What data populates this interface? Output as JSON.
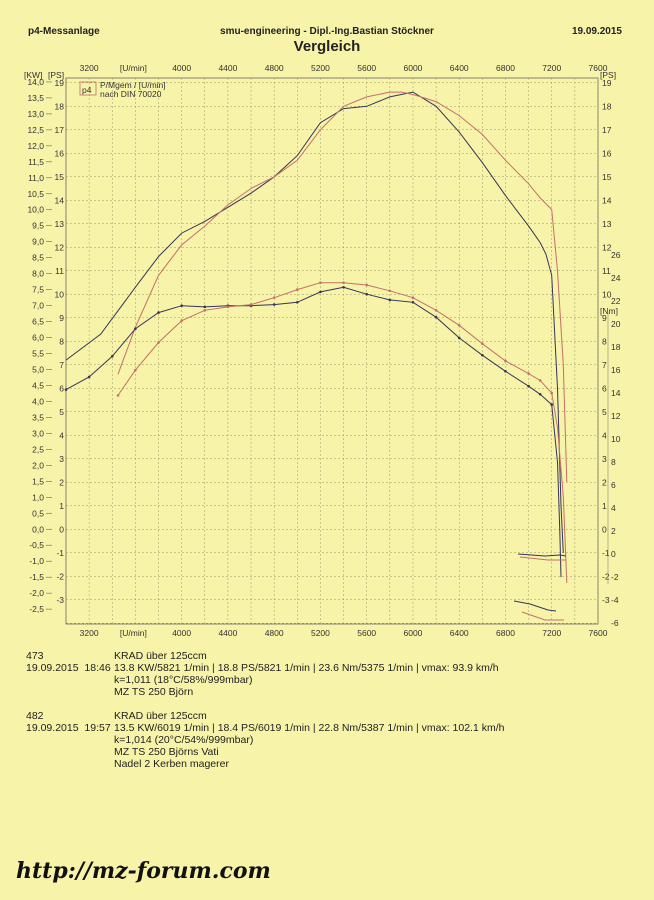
{
  "header": {
    "left": "p4-Messanlage",
    "center": "smu-engineering - Dipl.-Ing.Bastian Stöckner",
    "right": "19.09.2015",
    "title": "Vergleich"
  },
  "chart_data": {
    "type": "line",
    "x": {
      "label": "[U/min]",
      "min": 3000,
      "max": 7600,
      "ticks": [
        3200,
        4000,
        4400,
        4800,
        5200,
        5600,
        6000,
        6400,
        6800,
        7200,
        7600
      ]
    },
    "y_kw": {
      "label": "[KW]",
      "min": -2.5,
      "max": 14.0,
      "ticks": [
        "14,0",
        "13,5",
        "13,0",
        "12,5",
        "12,0",
        "11,5",
        "11,0",
        "10,5",
        "10,0",
        "9,5",
        "9,0",
        "8,5",
        "8,0",
        "7,5",
        "7,0",
        "6,5",
        "6,0",
        "5,5",
        "5,0",
        "4,5",
        "4,0",
        "3,5",
        "3,0",
        "2,5",
        "2,0",
        "1,5",
        "1,0",
        "0,5",
        "0,0",
        "-0,5",
        "-1,0",
        "-1,5",
        "-2,0",
        "-2,5"
      ]
    },
    "y_ps": {
      "label": "[PS]",
      "min": -4,
      "max": 19
    },
    "y_nm": {
      "label": "[Nm]",
      "min": -6,
      "max": 26
    },
    "legend": {
      "logo": "p4",
      "line1": "P/Mgem / [U/min]",
      "line2": "nach DIN 70020"
    },
    "series": [
      {
        "axis": "ps",
        "color": "#35355a",
        "points": [
          [
            3000,
            7.2
          ],
          [
            3300,
            8.3
          ],
          [
            3600,
            10.3
          ],
          [
            3800,
            11.6
          ],
          [
            4000,
            12.6
          ],
          [
            4200,
            13.1
          ],
          [
            4400,
            13.7
          ],
          [
            4600,
            14.3
          ],
          [
            4800,
            15.0
          ],
          [
            5000,
            15.9
          ],
          [
            5200,
            17.3
          ],
          [
            5400,
            17.9
          ],
          [
            5600,
            18.0
          ],
          [
            5800,
            18.4
          ],
          [
            6000,
            18.6
          ],
          [
            6200,
            18.0
          ],
          [
            6400,
            16.9
          ],
          [
            6600,
            15.6
          ],
          [
            6800,
            14.2
          ],
          [
            7000,
            12.9
          ],
          [
            7100,
            12.2
          ],
          [
            7150,
            11.7
          ],
          [
            7200,
            10.8
          ],
          [
            7250,
            6.0
          ],
          [
            7280,
            1.0
          ],
          [
            7300,
            -1.0
          ]
        ]
      },
      {
        "axis": "ps",
        "color": "#c4706a",
        "points": [
          [
            3450,
            6.6
          ],
          [
            3600,
            8.6
          ],
          [
            3800,
            10.8
          ],
          [
            4000,
            12.1
          ],
          [
            4200,
            12.9
          ],
          [
            4400,
            13.8
          ],
          [
            4600,
            14.5
          ],
          [
            4800,
            15.0
          ],
          [
            5000,
            15.7
          ],
          [
            5200,
            17.0
          ],
          [
            5400,
            18.0
          ],
          [
            5600,
            18.4
          ],
          [
            5800,
            18.6
          ],
          [
            5900,
            18.6
          ],
          [
            6000,
            18.5
          ],
          [
            6200,
            18.2
          ],
          [
            6400,
            17.6
          ],
          [
            6600,
            16.8
          ],
          [
            6800,
            15.7
          ],
          [
            7000,
            14.7
          ],
          [
            7100,
            14.1
          ],
          [
            7200,
            13.6
          ],
          [
            7250,
            11.0
          ],
          [
            7300,
            7.0
          ],
          [
            7330,
            2.0
          ]
        ]
      },
      {
        "axis": "nm",
        "color": "#35355a",
        "points": [
          [
            3000,
            14.3
          ],
          [
            3200,
            15.4
          ],
          [
            3400,
            17.2
          ],
          [
            3600,
            19.6
          ],
          [
            3800,
            21.0
          ],
          [
            4000,
            21.6
          ],
          [
            4200,
            21.5
          ],
          [
            4400,
            21.6
          ],
          [
            4600,
            21.6
          ],
          [
            4800,
            21.7
          ],
          [
            5000,
            21.9
          ],
          [
            5200,
            22.8
          ],
          [
            5400,
            23.2
          ],
          [
            5600,
            22.6
          ],
          [
            5800,
            22.1
          ],
          [
            6000,
            21.9
          ],
          [
            6200,
            20.6
          ],
          [
            6400,
            18.8
          ],
          [
            6600,
            17.3
          ],
          [
            6800,
            15.9
          ],
          [
            7000,
            14.6
          ],
          [
            7100,
            13.9
          ],
          [
            7200,
            13.0
          ],
          [
            7250,
            8.0
          ],
          [
            7270,
            2.0
          ],
          [
            7280,
            -2.0
          ]
        ]
      },
      {
        "axis": "nm",
        "color": "#c4706a",
        "points": [
          [
            3450,
            13.8
          ],
          [
            3600,
            16.0
          ],
          [
            3800,
            18.4
          ],
          [
            4000,
            20.3
          ],
          [
            4200,
            21.2
          ],
          [
            4400,
            21.5
          ],
          [
            4600,
            21.7
          ],
          [
            4800,
            22.3
          ],
          [
            5000,
            23.0
          ],
          [
            5200,
            23.6
          ],
          [
            5400,
            23.6
          ],
          [
            5600,
            23.4
          ],
          [
            5800,
            22.9
          ],
          [
            6000,
            22.3
          ],
          [
            6200,
            21.2
          ],
          [
            6400,
            19.9
          ],
          [
            6600,
            18.3
          ],
          [
            6800,
            16.8
          ],
          [
            7000,
            15.7
          ],
          [
            7100,
            15.1
          ],
          [
            7200,
            14.0
          ],
          [
            7250,
            11.0
          ],
          [
            7300,
            5.0
          ],
          [
            7330,
            -2.5
          ]
        ]
      }
    ]
  },
  "runs": [
    {
      "id": "473",
      "date": "19.09.2015",
      "time": "18:46",
      "class": "KRAD über 125ccm",
      "line1": "13.8 KW/5821 1/min  |  18.8 PS/5821 1/min  |  23.6 Nm/5375 1/min  | vmax: 93.9 km/h",
      "line2": "k=1,011 (18°C/58%/999mbar)",
      "line3": "MZ TS 250 Björn",
      "line4": ""
    },
    {
      "id": "482",
      "date": "19.09.2015",
      "time": "19:57",
      "class": "KRAD über 125ccm",
      "line1": "13.5 KW/6019 1/min  |  18.4 PS/6019 1/min  |  22.8 Nm/5387 1/min  | vmax: 102.1 km/h",
      "line2": "k=1,014 (20°C/54%/999mbar)",
      "line3": "MZ TS 250 Björns Vati",
      "line4": "Nadel 2 Kerben magerer"
    }
  ],
  "footer": {
    "url": "http://mz-forum.com"
  }
}
